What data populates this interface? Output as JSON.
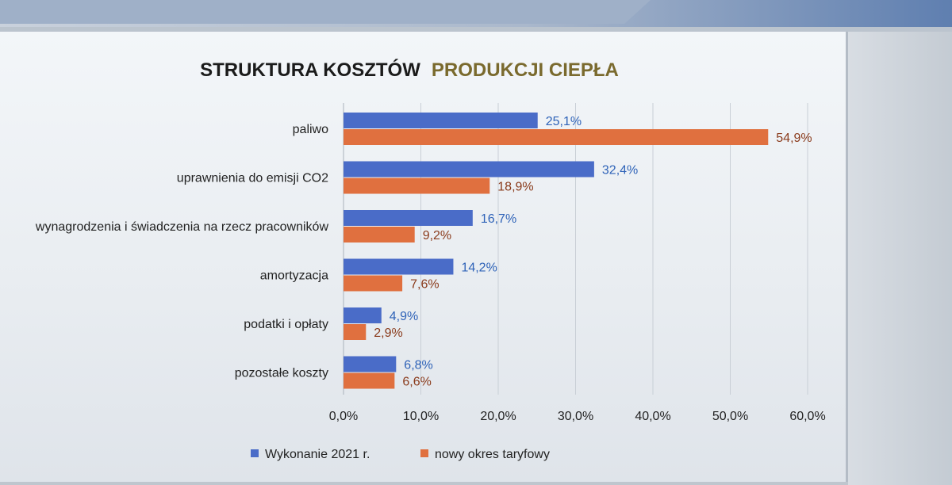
{
  "chart_data": {
    "type": "bar",
    "orientation": "horizontal",
    "title_part1": "STRUKTURA KOSZTÓW",
    "title_part2": "PRODUKCJI CIEPŁA",
    "categories": [
      "paliwo",
      "uprawnienia do emisji CO2",
      "wynagrodzenia i świadczenia na rzecz pracowników",
      "amortyzacja",
      "podatki i opłaty",
      "pozostałe koszty"
    ],
    "series": [
      {
        "name": "Wykonanie 2021 r.",
        "color": "#4a6cc8",
        "label_color": "#2f63b8",
        "values": [
          25.1,
          32.4,
          16.7,
          14.2,
          4.9,
          6.8
        ],
        "labels": [
          "25,1%",
          "32,4%",
          "16,7%",
          "14,2%",
          "4,9%",
          "6,8%"
        ]
      },
      {
        "name": "nowy okres taryfowy",
        "color": "#e0703f",
        "label_color": "#8a3b1c",
        "values": [
          54.9,
          18.9,
          9.2,
          7.6,
          2.9,
          6.6
        ],
        "labels": [
          "54,9%",
          "18,9%",
          "9,2%",
          "7,6%",
          "2,9%",
          "6,6%"
        ]
      }
    ],
    "xlim": [
      0,
      60
    ],
    "xticks": [
      0,
      10,
      20,
      30,
      40,
      50,
      60
    ],
    "xtick_labels": [
      "0,0%",
      "10,0%",
      "20,0%",
      "30,0%",
      "40,0%",
      "50,0%",
      "60,0%"
    ],
    "grid": true,
    "legend_position": "bottom"
  }
}
